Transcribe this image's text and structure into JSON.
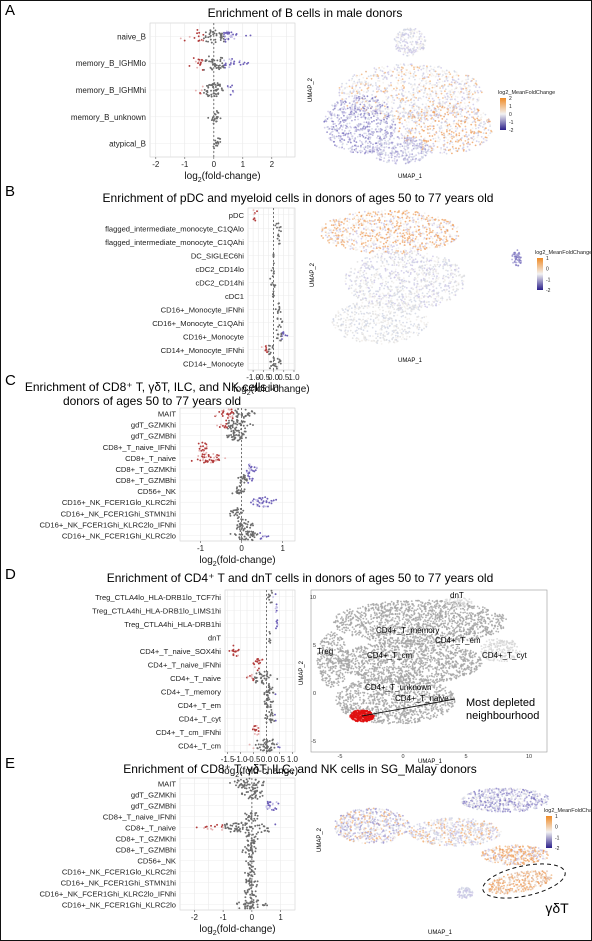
{
  "colors": {
    "depleted": "#b23b3b",
    "depleted_light": "#e6b3b3",
    "neutral": "#6b6b6b",
    "neutral_light": "#bdbdbd",
    "enriched": "#6e60b8",
    "enriched_light": "#c3bde6",
    "umap_grey": "#d4d4d4",
    "umap_dark_grey": "#a5a5a5",
    "nbhd_red": "#e01010"
  },
  "panels": [
    {
      "letter": "A",
      "title": "Enrichment of B cells in male donors",
      "umap_legend": {
        "title": "log2_MeanFoldChange",
        "ticks": [
          "2",
          "1",
          "0",
          "-1",
          "-2"
        ]
      },
      "umap_xlabel": "UMAP_1",
      "umap_ylabel": "UMAP_2",
      "umap_labels": [],
      "umap_note": ""
    },
    {
      "letter": "B",
      "title": "Enrichment of pDC and myeloid cells in donors of ages 50 to 77 years old",
      "umap_legend": {
        "title": "log2_MeanFoldChange",
        "ticks": [
          "1",
          "0",
          "-1",
          "-2"
        ]
      },
      "umap_xlabel": "UMAP_1",
      "umap_ylabel": "UMAP_2",
      "umap_labels": [],
      "umap_note": ""
    },
    {
      "letter": "C",
      "title_line1": "Enrichment of CD8⁺ T, γδT, ILC, and NK cells in",
      "title_line2": "donors of ages 50 to 77 years old"
    },
    {
      "letter": "D",
      "title": "Enrichment of CD4⁺ T and dnT cells in donors of ages 50 to 77 years old",
      "umap_xlabel": "UMAP_1",
      "umap_ylabel": "UMAP_2",
      "umap_labels": [
        "dnT",
        "CD4+_T_memory",
        "CD4+_T_em",
        "Treg",
        "CD4+_T_cm",
        "CD4+_T_cyt",
        "CD4+_T_unknown",
        "CD4+_T_naive"
      ],
      "umap_note": "Most depleted\nneighbourhood"
    },
    {
      "letter": "E",
      "title": "Enrichment of CD8⁺ T, γδT, ILC, and NK cells in SG_Malay donors",
      "umap_legend": {
        "title": "log2_MeanFoldChange",
        "ticks": [
          "1",
          "0",
          "-1",
          "-2"
        ]
      },
      "umap_xlabel": "UMAP_1",
      "umap_ylabel": "UMAP_2",
      "umap_labels": [
        "γδT"
      ],
      "umap_note": ""
    }
  ],
  "chart_data": [
    {
      "type": "beeswarm",
      "panel": "A",
      "title": "Enrichment of B cells in male donors",
      "xlabel": "log2(fold-change)",
      "xlim": [
        -2.2,
        2.8
      ],
      "xticks": [
        -2,
        -1,
        0,
        1,
        2
      ],
      "categories": [
        "naive_B",
        "memory_B_IGHMlo",
        "memory_B_IGHMhi",
        "memory_B_unknown",
        "atypical_B"
      ],
      "distributions": [
        {
          "min": -1.3,
          "median": -0.2,
          "max": 1.5,
          "depleted_below": -0.35,
          "enriched_above": 0.35
        },
        {
          "min": -1.2,
          "median": -0.1,
          "max": 1.5,
          "depleted_below": -0.35,
          "enriched_above": 0.35
        },
        {
          "min": -1.0,
          "median": 0.05,
          "max": 1.0,
          "depleted_below": -0.35,
          "enriched_above": 0.35
        },
        {
          "min": -0.3,
          "median": 0.0,
          "max": 0.35,
          "depleted_below": -9,
          "enriched_above": 9
        },
        {
          "min": -0.15,
          "median": 0.1,
          "max": 0.35,
          "depleted_below": -9,
          "enriched_above": 9
        }
      ],
      "grid": true
    },
    {
      "type": "beeswarm",
      "panel": "B",
      "title": "Enrichment of pDC and myeloid cells in donors of ages 50 to 77 years old",
      "xlabel": "log2(fold-change)",
      "xlim": [
        -1.25,
        1.05
      ],
      "xticks": [
        -1.0,
        -0.5,
        0.0,
        0.5,
        1.0
      ],
      "categories": [
        "pDC",
        "flagged_intermediate_monocyte_C1QAlo",
        "flagged_intermediate_monocyte_C1QAhi",
        "DC_SIGLEC6hi",
        "cDC2_CD14lo",
        "cDC2_CD14hi",
        "cDC1",
        "CD16+_Monocyte_IFNhi",
        "CD16+_Monocyte_C1QAhi",
        "CD16+_Monocyte",
        "CD14+_Monocyte_IFNhi",
        "CD14+_Monocyte"
      ],
      "distributions": [
        {
          "min": -1.05,
          "median": -0.9,
          "max": -0.75,
          "depleted_below": 0,
          "enriched_above": 9
        },
        {
          "min": 0.05,
          "median": 0.22,
          "max": 0.45,
          "depleted_below": -9,
          "enriched_above": 9
        },
        {
          "min": 0.1,
          "median": 0.22,
          "max": 0.35,
          "depleted_below": -9,
          "enriched_above": 9
        },
        {
          "min": 0,
          "median": 0,
          "max": 0,
          "depleted_below": -9,
          "enriched_above": 9
        },
        {
          "min": -0.15,
          "median": 0.0,
          "max": 0.12,
          "depleted_below": -9,
          "enriched_above": 9
        },
        {
          "min": -0.25,
          "median": -0.05,
          "max": 0.15,
          "depleted_below": -9,
          "enriched_above": 9
        },
        {
          "min": -0.08,
          "median": 0.0,
          "max": 0.05,
          "depleted_below": -9,
          "enriched_above": 9
        },
        {
          "min": 0.05,
          "median": 0.28,
          "max": 0.5,
          "depleted_below": -9,
          "enriched_above": 9
        },
        {
          "min": 0.1,
          "median": 0.28,
          "max": 0.45,
          "depleted_below": -9,
          "enriched_above": 9
        },
        {
          "min": -0.1,
          "median": 0.25,
          "max": 0.8,
          "depleted_below": -9,
          "enriched_above": 0.4
        },
        {
          "min": -0.7,
          "median": -0.3,
          "max": 0.15,
          "depleted_below": -0.25,
          "enriched_above": 9
        },
        {
          "min": -0.4,
          "median": 0.0,
          "max": 0.5,
          "depleted_below": -9,
          "enriched_above": 9
        }
      ],
      "grid": true
    },
    {
      "type": "beeswarm",
      "panel": "C",
      "title": "Enrichment of CD8+ T, γδT, ILC, and NK cells in donors of ages 50 to 77 years old",
      "xlabel": "log2(fold-change)",
      "xlim": [
        -1.5,
        1.3
      ],
      "xticks": [
        -1,
        0,
        1
      ],
      "categories": [
        "MAIT",
        "gdT_GZMKhi",
        "gdT_GZMBhi",
        "CD8+_T_naive_IFNhi",
        "CD8+_T_naive",
        "CD8+_T_GZMKhi",
        "CD8+_T_GZMBhi",
        "CD56+_NK",
        "CD16+_NK_FCER1Glo_KLRC2hi",
        "CD16+_NK_FCER1Ghi_STMN1hi",
        "CD16+_NK_FCER1Ghi_KLRC2lo_IFNhi",
        "CD16+_NK_FCER1Ghi_KLRC2lo"
      ],
      "distributions": [
        {
          "min": -0.8,
          "median": -0.2,
          "max": 0.5,
          "depleted_below": -0.2,
          "enriched_above": 9
        },
        {
          "min": -0.7,
          "median": -0.2,
          "max": 0.4,
          "depleted_below": -0.35,
          "enriched_above": 9
        },
        {
          "min": -0.6,
          "median": -0.1,
          "max": 0.4,
          "depleted_below": -0.4,
          "enriched_above": 9
        },
        {
          "min": -1.1,
          "median": -0.95,
          "max": -0.75,
          "depleted_below": 0,
          "enriched_above": 9
        },
        {
          "min": -1.3,
          "median": -0.9,
          "max": -0.3,
          "depleted_below": 0,
          "enriched_above": 9
        },
        {
          "min": 0.0,
          "median": 0.2,
          "max": 0.45,
          "depleted_below": -9,
          "enriched_above": 0.05
        },
        {
          "min": -0.2,
          "median": 0.1,
          "max": 0.4,
          "depleted_below": -9,
          "enriched_above": 0.15
        },
        {
          "min": -0.3,
          "median": -0.1,
          "max": 0.15,
          "depleted_below": -9,
          "enriched_above": 9
        },
        {
          "min": 0.1,
          "median": 0.55,
          "max": 0.95,
          "depleted_below": -9,
          "enriched_above": 0.2
        },
        {
          "min": -0.35,
          "median": -0.1,
          "max": 0.15,
          "depleted_below": -9,
          "enriched_above": 9
        },
        {
          "min": -0.3,
          "median": 0.0,
          "max": 0.4,
          "depleted_below": -9,
          "enriched_above": 0.3
        },
        {
          "min": -0.4,
          "median": 0.1,
          "max": 0.8,
          "depleted_below": -9,
          "enriched_above": 0.45
        }
      ],
      "grid": true
    },
    {
      "type": "beeswarm",
      "panel": "D",
      "title": "Enrichment of CD4+ T and dnT cells in donors of ages 50 to 77 years old",
      "xlabel": "log2(fold-change)",
      "xlim": [
        -1.6,
        1.1
      ],
      "xticks": [
        -1.5,
        -1.0,
        -0.5,
        0.0,
        0.5,
        1.0
      ],
      "categories": [
        "Treg_CTLA4lo_HLA-DRB1lo_TCF7hi",
        "Treg_CTLA4hi_HLA-DRB1lo_LIMS1hi",
        "Treg_CTLA4hi_HLA-DRB1hi",
        "dnT",
        "CD4+_T_naive_SOX4hi",
        "CD4+_T_naive_IFNhi",
        "CD4+_T_naive",
        "CD4+_T_memory",
        "CD4+_T_em",
        "CD4+_T_cyt",
        "CD4+_T_cm_IFNhi",
        "CD4+_T_cm"
      ],
      "distributions": [
        {
          "min": 0.0,
          "median": 0.2,
          "max": 0.4,
          "depleted_below": -9,
          "enriched_above": 0.25
        },
        {
          "min": 0.3,
          "median": 0.38,
          "max": 0.48,
          "depleted_below": -9,
          "enriched_above": 0.3
        },
        {
          "min": 0.3,
          "median": 0.38,
          "max": 0.5,
          "depleted_below": -9,
          "enriched_above": 0.3
        },
        {
          "min": 0.05,
          "median": 0.12,
          "max": 0.2,
          "depleted_below": -9,
          "enriched_above": 9
        },
        {
          "min": -1.5,
          "median": -1.2,
          "max": -0.95,
          "depleted_below": 0,
          "enriched_above": 9
        },
        {
          "min": -0.6,
          "median": -0.3,
          "max": -0.05,
          "depleted_below": -0.1,
          "enriched_above": 9
        },
        {
          "min": -1.0,
          "median": 0.0,
          "max": 0.6,
          "depleted_below": -0.5,
          "enriched_above": 0.5
        },
        {
          "min": -0.3,
          "median": 0.1,
          "max": 0.5,
          "depleted_below": -9,
          "enriched_above": 0.3
        },
        {
          "min": -0.2,
          "median": 0.1,
          "max": 0.45,
          "depleted_below": -9,
          "enriched_above": 0.3
        },
        {
          "min": -0.2,
          "median": 0.15,
          "max": 0.5,
          "depleted_below": -9,
          "enriched_above": 0.3
        },
        {
          "min": -0.65,
          "median": -0.4,
          "max": -0.15,
          "depleted_below": -0.15,
          "enriched_above": 9
        },
        {
          "min": -0.9,
          "median": 0.1,
          "max": 0.9,
          "depleted_below": -0.5,
          "enriched_above": 0.4
        }
      ],
      "grid": true
    },
    {
      "type": "beeswarm",
      "panel": "E",
      "title": "Enrichment of CD8+ T, γδT, ILC, and NK cells in SG_Malay donors",
      "xlabel": "log2(fold-change)",
      "xlim": [
        -2.5,
        1.5
      ],
      "xticks": [
        -2,
        -1,
        0,
        1
      ],
      "categories": [
        "MAIT",
        "gdT_GZMKhi",
        "gdT_GZMBhi",
        "CD8+_T_naive_IFNhi",
        "CD8+_T_naive",
        "CD8+_T_GZMKhi",
        "CD8+_T_GZMBhi",
        "CD56+_NK",
        "CD16+_NK_FCER1Glo_KLRC2hi",
        "CD16+_NK_FCER1Ghi_STMN1hi",
        "CD16+_NK_FCER1Ghi_KLRC2lo_IFNhi",
        "CD16+_NK_FCER1Ghi_KLRC2lo"
      ],
      "distributions": [
        {
          "min": -0.9,
          "median": -0.1,
          "max": 0.6,
          "depleted_below": -9,
          "enriched_above": 9
        },
        {
          "min": -0.5,
          "median": 0.1,
          "max": 0.6,
          "depleted_below": -9,
          "enriched_above": 9
        },
        {
          "min": 0.3,
          "median": 0.7,
          "max": 1.0,
          "depleted_below": -9,
          "enriched_above": 0.4
        },
        {
          "min": -0.4,
          "median": 0.0,
          "max": 0.4,
          "depleted_below": -9,
          "enriched_above": 9
        },
        {
          "min": -2.2,
          "median": 0.0,
          "max": 1.4,
          "depleted_below": -1.0,
          "enriched_above": 0.8
        },
        {
          "min": -0.3,
          "median": 0.05,
          "max": 0.4,
          "depleted_below": -9,
          "enriched_above": 9
        },
        {
          "min": -0.5,
          "median": -0.05,
          "max": 0.3,
          "depleted_below": -9,
          "enriched_above": 9
        },
        {
          "min": -0.25,
          "median": -0.05,
          "max": 0.15,
          "depleted_below": -9,
          "enriched_above": 9
        },
        {
          "min": -0.3,
          "median": 0.0,
          "max": 0.3,
          "depleted_below": -9,
          "enriched_above": 9
        },
        {
          "min": -0.3,
          "median": 0.0,
          "max": 0.35,
          "depleted_below": -9,
          "enriched_above": 9
        },
        {
          "min": -0.35,
          "median": -0.05,
          "max": 0.3,
          "depleted_below": -9,
          "enriched_above": 9
        },
        {
          "min": -0.8,
          "median": -0.1,
          "max": 0.7,
          "depleted_below": -9,
          "enriched_above": 9
        }
      ],
      "grid": true
    }
  ]
}
